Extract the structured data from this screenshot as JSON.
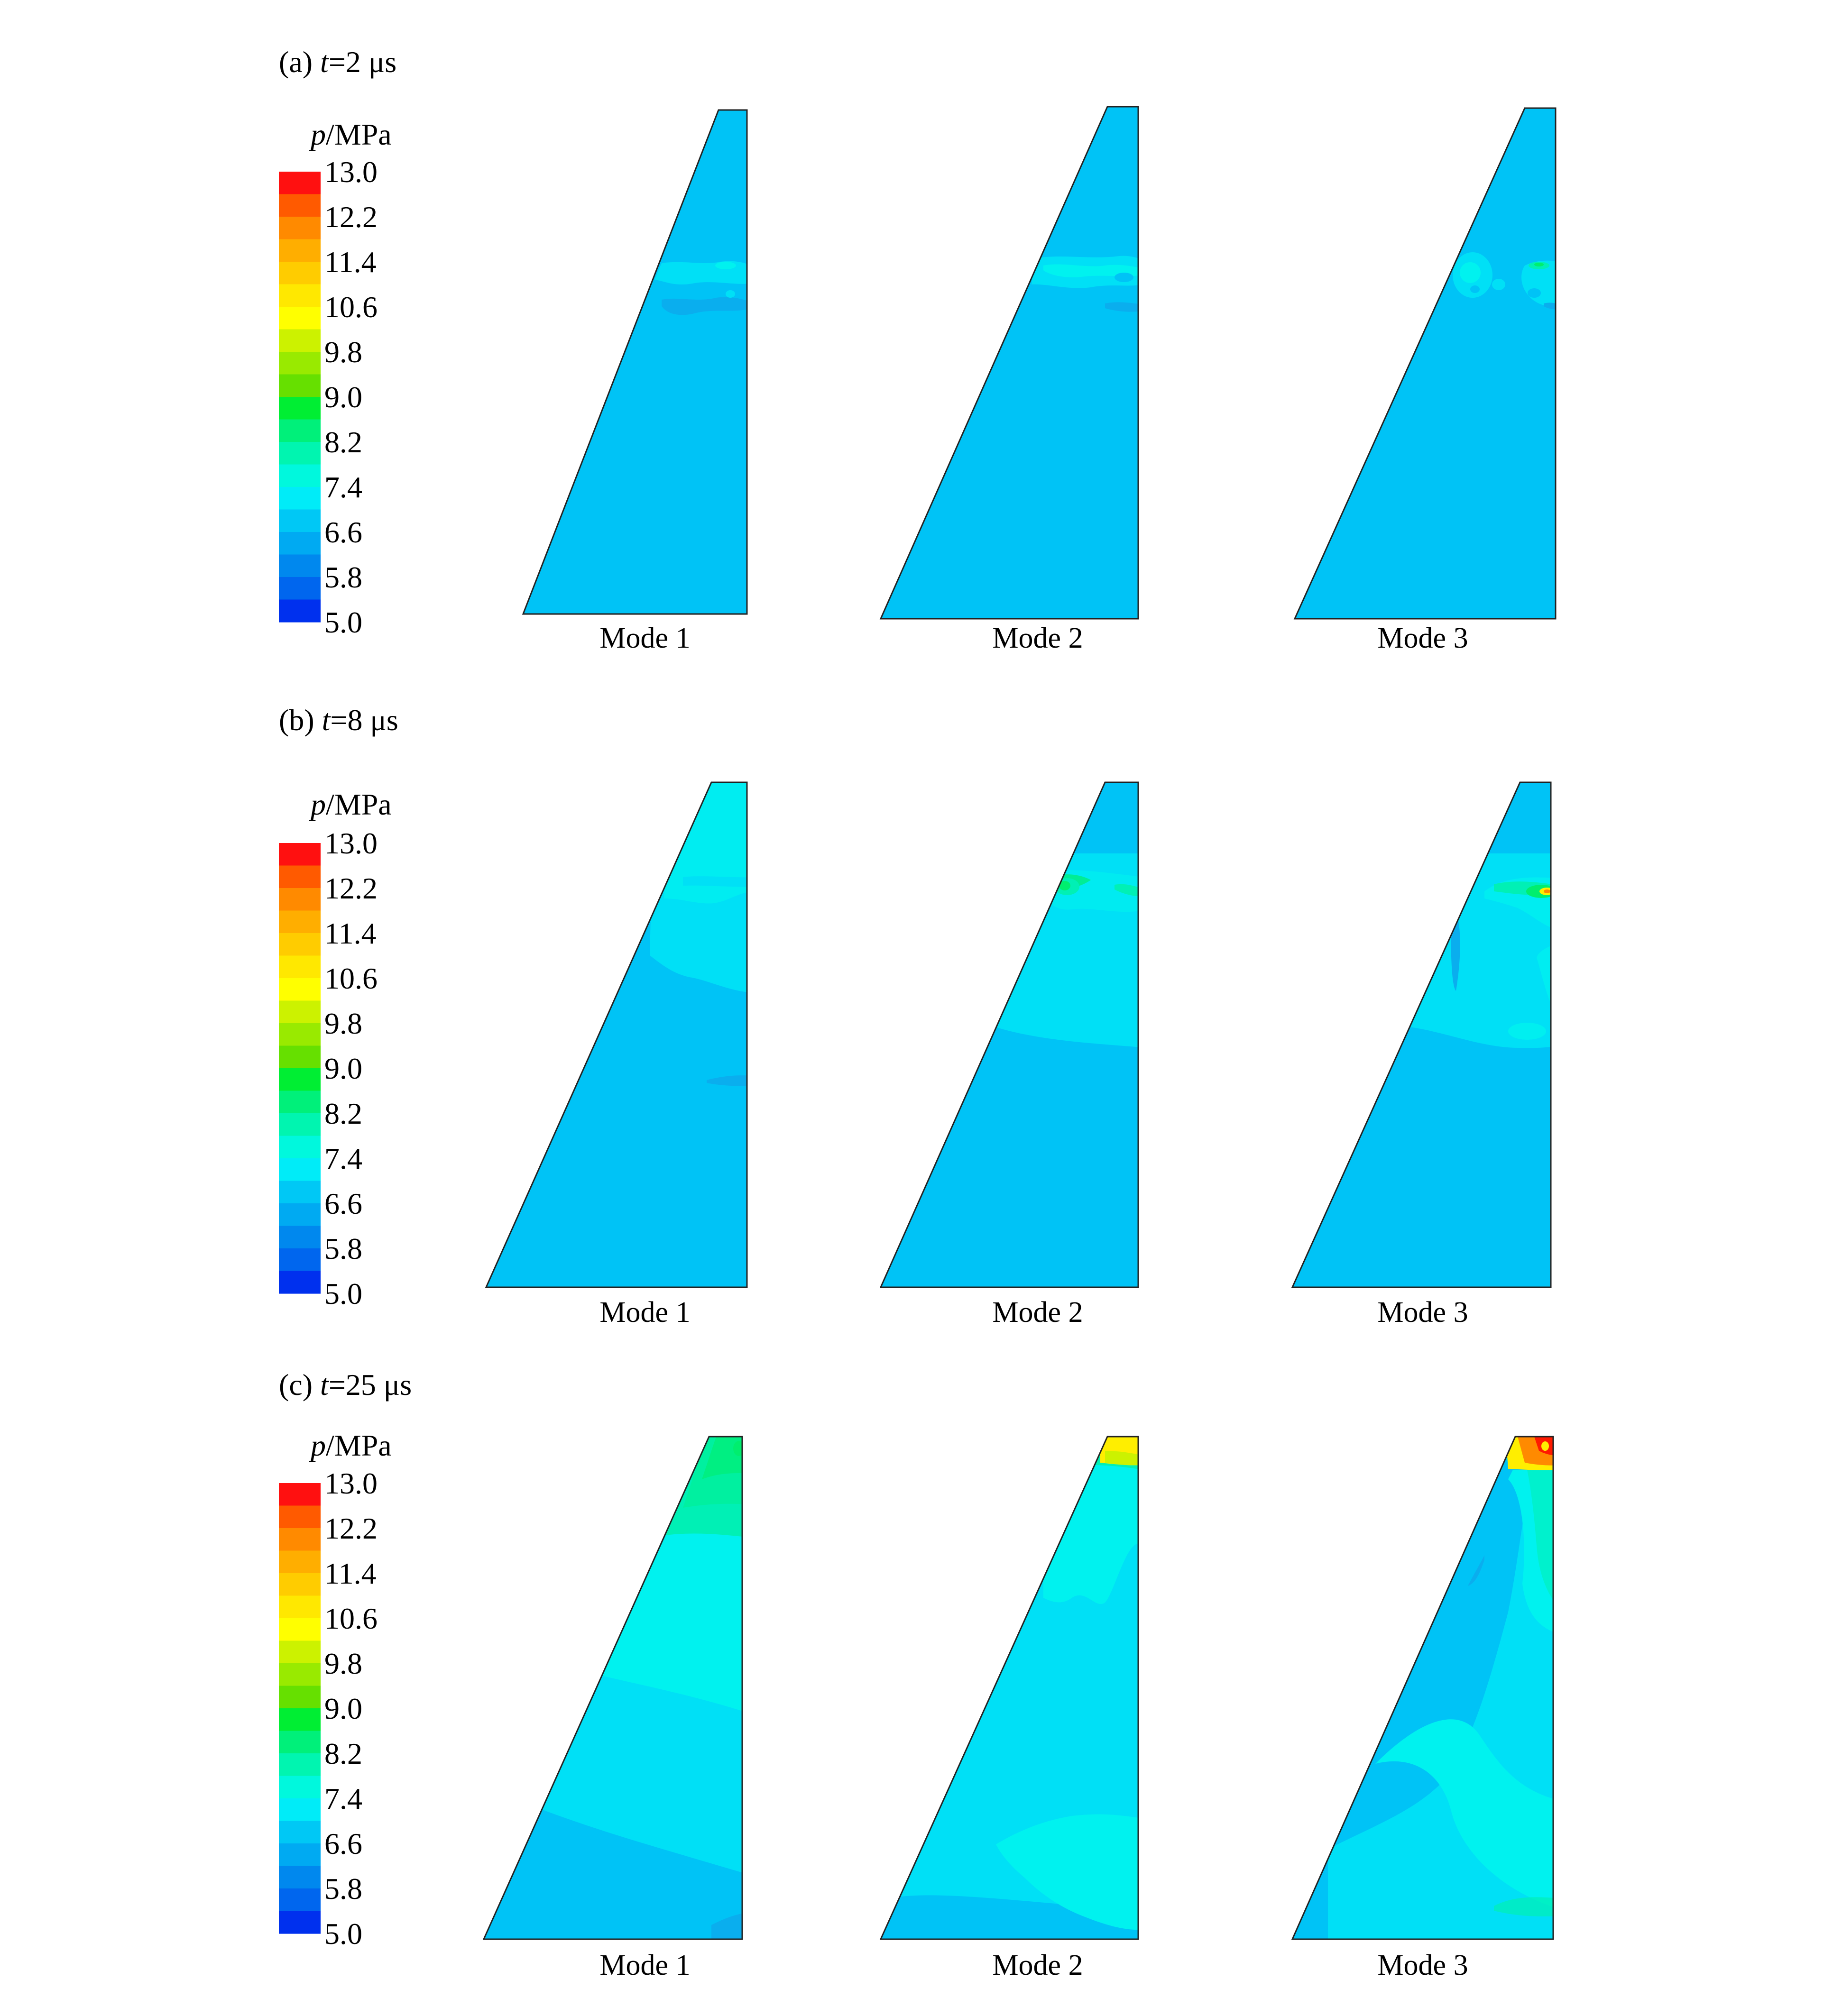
{
  "colorbar": {
    "unit_label": "p/MPa",
    "unit_var": "p",
    "unit_rest": "/MPa",
    "tick_labels": [
      "13.0",
      "12.2",
      "11.4",
      "10.6",
      "9.8",
      "9.0",
      "8.2",
      "7.4",
      "6.6",
      "5.8",
      "5.0"
    ],
    "colors_top_to_bottom": [
      "#ff1010",
      "#ff5a00",
      "#ff8a00",
      "#ffae00",
      "#ffcc00",
      "#ffe800",
      "#ffff00",
      "#ccf200",
      "#99ea00",
      "#66e000",
      "#00ee33",
      "#00f07a",
      "#00f5b0",
      "#00f8dd",
      "#00ecf8",
      "#00c8f5",
      "#00aaf2",
      "#0088ee",
      "#0066ee",
      "#0030ee"
    ]
  },
  "panels": [
    {
      "id": "a",
      "prefix": "(a) ",
      "var": "t",
      "value": "=2 μs",
      "modes": [
        "Mode 1",
        "Mode 2",
        "Mode 3"
      ]
    },
    {
      "id": "b",
      "prefix": "(b) ",
      "var": "t",
      "value": "=8 μs",
      "modes": [
        "Mode 1",
        "Mode 2",
        "Mode 3"
      ]
    },
    {
      "id": "c",
      "prefix": "(c) ",
      "var": "t",
      "value": "=25 μs",
      "modes": [
        "Mode 1",
        "Mode 2",
        "Mode 3"
      ]
    }
  ],
  "colors": {
    "base_blue": "#00c3f6",
    "light_cyan": "#00e0f6",
    "cyan": "#00f2ef",
    "aqua_green": "#00f0b5",
    "green": "#00ee6e",
    "yellow": "#ffee00",
    "red": "#ff1a00"
  }
}
